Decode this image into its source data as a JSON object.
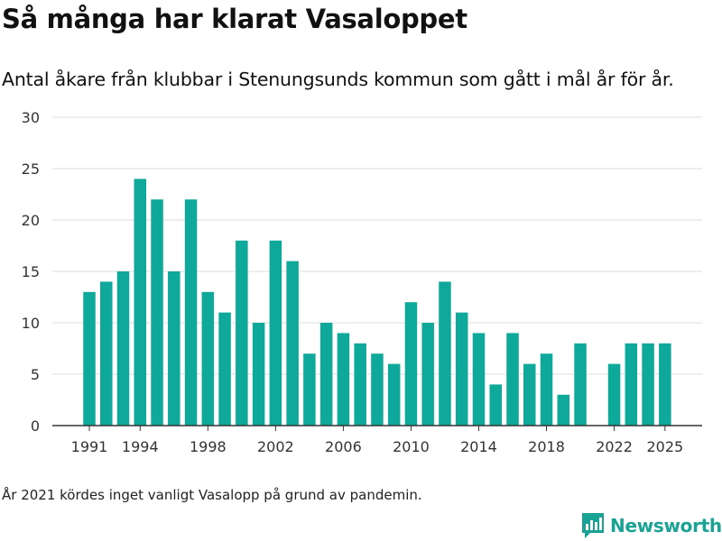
{
  "header": {
    "title": "Så många har klarat Vasaloppet",
    "subtitle": "Antal åkare från klubbar i Stenungsunds kommun som gått i mål år för år."
  },
  "footer": {
    "note": "År 2021 kördes inget vanligt Vasalopp på grund av pandemin.",
    "brand": "Newsworthy"
  },
  "colors": {
    "bar": "#0ea99a",
    "grid": "#dddddd",
    "axis": "#333333",
    "brand": "#19a394"
  },
  "icons": {
    "logo": "bar-chart-logo-icon"
  },
  "chart_data": {
    "type": "bar",
    "title": "Så många har klarat Vasaloppet",
    "subtitle": "Antal åkare från klubbar i Stenungsunds kommun som gått i mål år för år.",
    "xlabel": "",
    "ylabel": "",
    "ylim": [
      0,
      30
    ],
    "yticks": [
      0,
      5,
      10,
      15,
      20,
      25,
      30
    ],
    "xticks": [
      1991,
      1994,
      1998,
      2002,
      2006,
      2010,
      2014,
      2018,
      2022,
      2025
    ],
    "grid": true,
    "legend": "none",
    "categories": [
      1991,
      1992,
      1993,
      1994,
      1995,
      1996,
      1997,
      1998,
      1999,
      2000,
      2001,
      2002,
      2003,
      2004,
      2005,
      2006,
      2007,
      2008,
      2009,
      2010,
      2011,
      2012,
      2013,
      2014,
      2015,
      2016,
      2017,
      2018,
      2019,
      2020,
      2021,
      2022,
      2023,
      2024,
      2025
    ],
    "values": [
      13,
      14,
      15,
      24,
      22,
      15,
      22,
      13,
      11,
      18,
      10,
      18,
      16,
      7,
      10,
      9,
      8,
      7,
      6,
      12,
      10,
      14,
      11,
      9,
      4,
      9,
      6,
      7,
      3,
      8,
      null,
      6,
      8,
      8,
      8
    ]
  }
}
